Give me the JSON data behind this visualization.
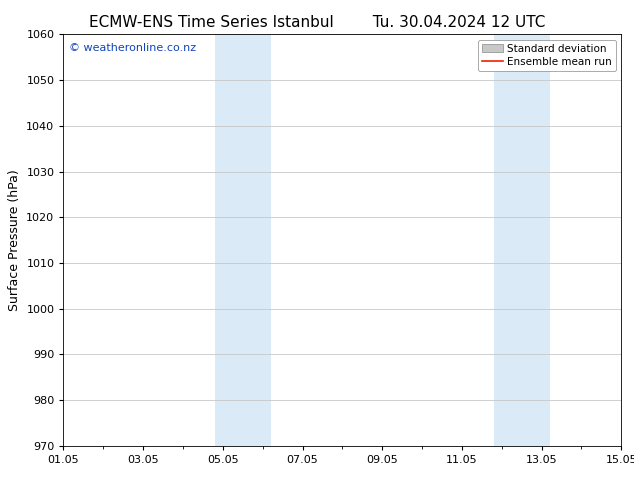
{
  "title_left": "ECMW-ENS Time Series Istanbul",
  "title_right": "Tu. 30.04.2024 12 UTC",
  "ylabel": "Surface Pressure (hPa)",
  "ylim": [
    970,
    1060
  ],
  "yticks": [
    970,
    980,
    990,
    1000,
    1010,
    1020,
    1030,
    1040,
    1050,
    1060
  ],
  "xlim": [
    0,
    14
  ],
  "xtick_labels": [
    "01.05",
    "03.05",
    "05.05",
    "07.05",
    "09.05",
    "11.05",
    "13.05",
    "15.05"
  ],
  "xtick_positions": [
    0,
    2,
    4,
    6,
    8,
    10,
    12,
    14
  ],
  "shaded_regions": [
    {
      "xstart": 3.8,
      "xend": 5.2
    },
    {
      "xstart": 10.8,
      "xend": 12.2
    }
  ],
  "shaded_color": "#daeaf7",
  "watermark_text": "© weatheronline.co.nz",
  "watermark_color": "#1144bb",
  "legend_labels": [
    "Standard deviation",
    "Ensemble mean run"
  ],
  "legend_patch_color": "#c8c8c8",
  "legend_line_color": "#ee2200",
  "bg_color": "#ffffff",
  "grid_color": "#c8c8c8",
  "title_fontsize": 11,
  "ylabel_fontsize": 9,
  "tick_fontsize": 8,
  "watermark_fontsize": 8,
  "legend_fontsize": 7.5
}
